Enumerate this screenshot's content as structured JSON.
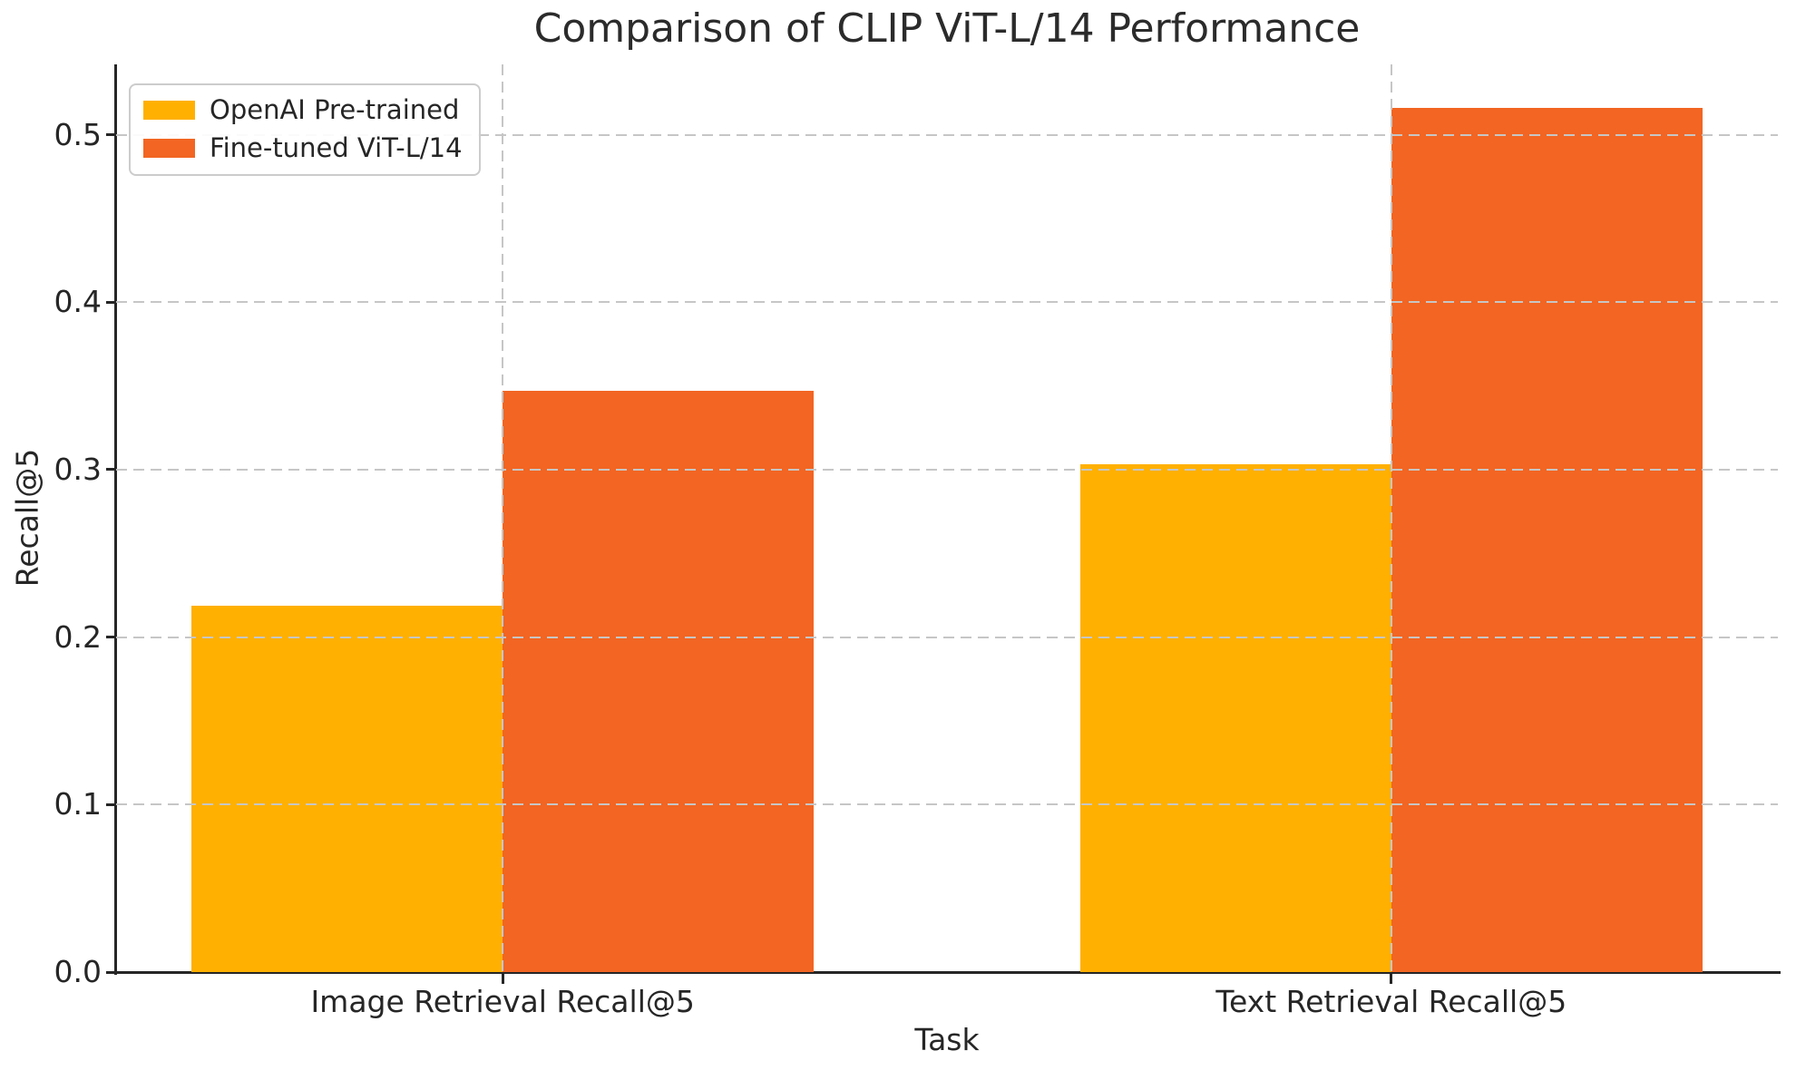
{
  "window": {
    "title": "Comparison of CLIP ViT-L/14 Performance"
  },
  "chart_data": {
    "type": "bar",
    "title": "Comparison of CLIP ViT-L/14 Performance",
    "xlabel": "Task",
    "ylabel": "Recall@5",
    "categories": [
      "Image Retrieval Recall@5",
      "Text Retrieval Recall@5"
    ],
    "series": [
      {
        "name": "OpenAI Pre-trained",
        "color": "#FFB000",
        "values": [
          0.219,
          0.303
        ]
      },
      {
        "name": "Fine-tuned ViT-L/14",
        "color": "#F26522",
        "values": [
          0.347,
          0.516
        ]
      }
    ],
    "yticks": [
      0.0,
      0.1,
      0.2,
      0.3,
      0.4,
      0.5
    ],
    "ytick_labels": [
      "0.0",
      "0.1",
      "0.2",
      "0.3",
      "0.4",
      "0.5"
    ],
    "ylim": [
      0,
      0.542
    ],
    "xlim": [
      -0.435,
      1.435
    ],
    "bar_width": 0.35,
    "grid": "dashed-both-axes-above-bars",
    "grid_color": "#c6c6c6",
    "axis_color": "#262626",
    "legend_position": "upper-left",
    "background_color": "#ffffff"
  }
}
